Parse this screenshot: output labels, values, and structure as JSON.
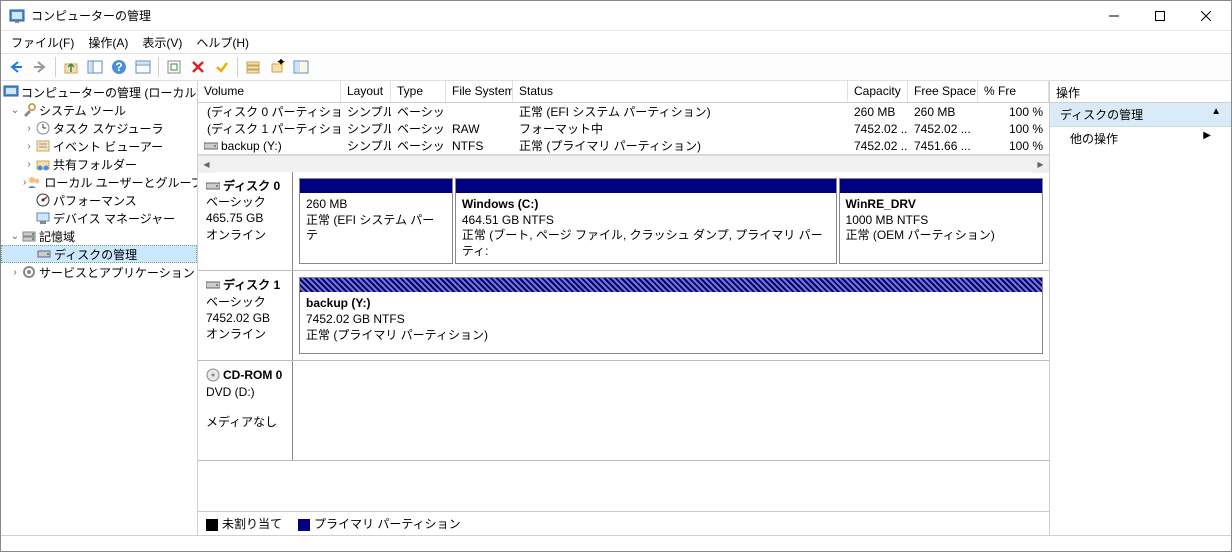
{
  "window": {
    "title": "コンピューターの管理"
  },
  "menu": {
    "file": "ファイル(F)",
    "action": "操作(A)",
    "view": "表示(V)",
    "help": "ヘルプ(H)"
  },
  "tree": {
    "root": "コンピューターの管理 (ローカル)",
    "sys": "システム ツール",
    "task": "タスク スケジューラ",
    "event": "イベント ビューアー",
    "share": "共有フォルダー",
    "users": "ローカル ユーザーとグループ",
    "perf": "パフォーマンス",
    "devmgr": "デバイス マネージャー",
    "storage": "記憶域",
    "diskmgmt": "ディスクの管理",
    "services": "サービスとアプリケーション"
  },
  "columns": {
    "volume": "Volume",
    "layout": "Layout",
    "type": "Type",
    "fs": "File System",
    "status": "Status",
    "capacity": "Capacity",
    "free": "Free Space",
    "pct": "% Fre"
  },
  "colw": {
    "volume": 143,
    "layout": 50,
    "type": 55,
    "fs": 67,
    "status": 335,
    "capacity": 60,
    "free": 70,
    "pct": 44
  },
  "rows": [
    {
      "volume": "(ディスク 0 パーティション 1)",
      "layout": "シンプル",
      "type": "ベーシック",
      "fs": "",
      "status": "正常 (EFI システム パーティション)",
      "capacity": "260 MB",
      "free": "260 MB",
      "pct": "100 %"
    },
    {
      "volume": "(ディスク 1 パーティション 2)",
      "layout": "シンプル",
      "type": "ベーシック",
      "fs": "RAW",
      "status": "フォーマット中",
      "capacity": "7452.02 ...",
      "free": "7452.02 ...",
      "pct": "100 %"
    },
    {
      "volume": "backup (Y:)",
      "layout": "シンプル",
      "type": "ベーシック",
      "fs": "NTFS",
      "status": "正常 (プライマリ パーティション)",
      "capacity": "7452.02 ...",
      "free": "7451.66 ...",
      "pct": "100 %"
    }
  ],
  "disks": [
    {
      "name": "ディスク 0",
      "type": "ベーシック",
      "size": "465.75 GB",
      "status": "オンライン",
      "parts": [
        {
          "label": "",
          "size": "260 MB",
          "status": "正常 (EFI システム パーテ",
          "flex": 1.2,
          "hatch": false
        },
        {
          "label": "Windows  (C:)",
          "size": "464.51 GB NTFS",
          "status": "正常 (ブート, ページ ファイル, クラッシュ ダンプ, プライマリ パーティ:",
          "flex": 3,
          "hatch": false
        },
        {
          "label": "WinRE_DRV",
          "size": "1000 MB NTFS",
          "status": "正常 (OEM パーティション)",
          "flex": 1.6,
          "hatch": false
        }
      ]
    },
    {
      "name": "ディスク 1",
      "type": "ベーシック",
      "size": "7452.02 GB",
      "status": "オンライン",
      "parts": [
        {
          "label": "backup  (Y:)",
          "size": "7452.02 GB NTFS",
          "status": "正常 (プライマリ パーティション)",
          "flex": 1,
          "hatch": true
        }
      ]
    },
    {
      "name": "CD-ROM 0",
      "type": "DVD (D:)",
      "size": "",
      "status": "メディアなし",
      "cdrom": true,
      "parts": []
    }
  ],
  "legend": {
    "unalloc": "未割り当て",
    "primary": "プライマリ パーティション"
  },
  "actions": {
    "header": "操作",
    "group": "ディスクの管理",
    "other": "他の操作"
  },
  "colors": {
    "primary": "#000080",
    "unalloc": "#000000",
    "selbg": "#cce8ff",
    "grpbg": "#d9ebf9"
  }
}
